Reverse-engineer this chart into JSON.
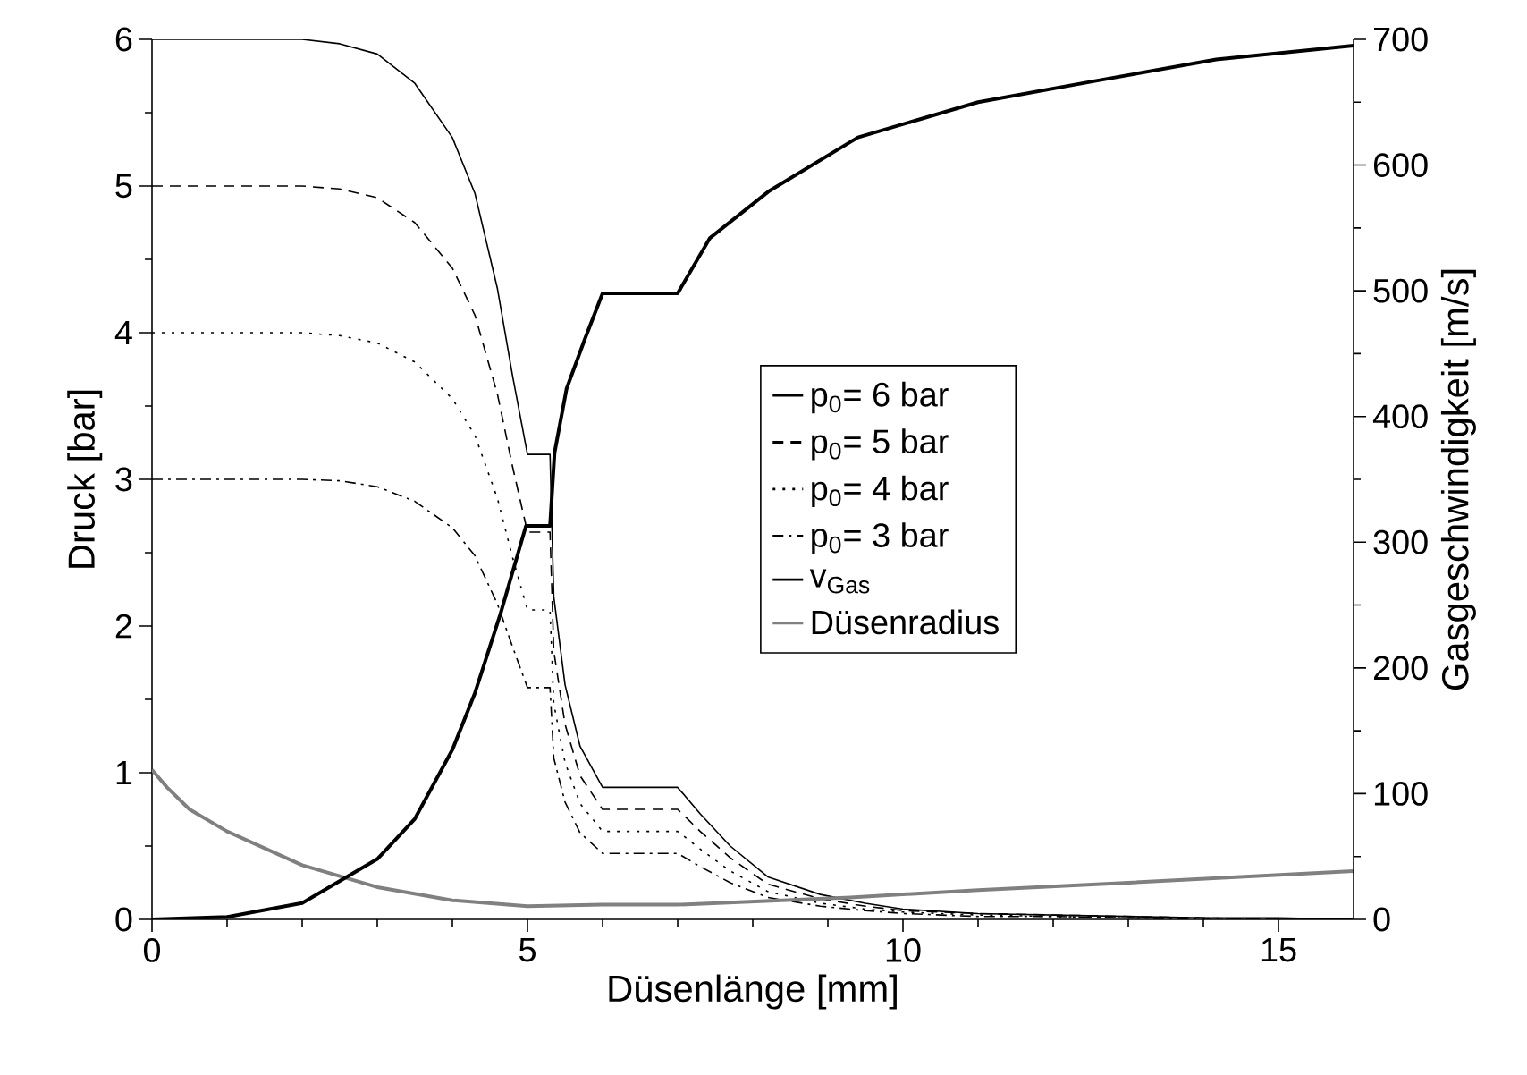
{
  "chart_data": {
    "type": "line",
    "xlabel": "Düsenlänge [mm]",
    "ylabel": "Druck [bar]",
    "y2label": "Gasgeschwindigkeit [m/s]",
    "xlim": [
      0,
      16
    ],
    "xticks": [
      0,
      5,
      10,
      15
    ],
    "ylim": [
      0,
      6
    ],
    "yticks": [
      0,
      1,
      2,
      3,
      4,
      5,
      6
    ],
    "y2lim": [
      0,
      700
    ],
    "y2ticks": [
      0,
      100,
      200,
      300,
      400,
      500,
      600,
      700
    ],
    "legend": "right",
    "grid": false,
    "marker": "none",
    "x": [
      0,
      1,
      2,
      2.5,
      3,
      3.5,
      4,
      4.3,
      4.6,
      4.8,
      5,
      5.3,
      5.35,
      5.5,
      5.7,
      6,
      7,
      7.3,
      7.7,
      8.2,
      8.9,
      9.5,
      10,
      11,
      12,
      13,
      14,
      15,
      16
    ],
    "series": [
      {
        "name": "p$_{0}$= 6 bar",
        "color": "#000000",
        "line_style": "solid",
        "values": [
          6,
          6,
          6,
          5.97,
          5.9,
          5.7,
          5.33,
          4.95,
          4.3,
          3.71,
          3.17,
          3.17,
          2.2,
          1.6,
          1.18,
          0.9,
          0.9,
          0.72,
          0.5,
          0.29,
          0.17,
          0.11,
          0.07,
          0.04,
          0.03,
          0.02,
          0.01,
          0.01,
          0
        ]
      },
      {
        "name": "p$_{0}$= 5 bar",
        "color": "#000000",
        "line_style": "dashed",
        "values": [
          5,
          5,
          5,
          4.98,
          4.92,
          4.75,
          4.44,
          4.12,
          3.58,
          3.09,
          2.64,
          2.64,
          1.83,
          1.33,
          0.98,
          0.75,
          0.75,
          0.6,
          0.42,
          0.24,
          0.14,
          0.09,
          0.06,
          0.04,
          0.03,
          0.02,
          0.01,
          0,
          0
        ]
      },
      {
        "name": "p$_{0}$= 4 bar",
        "color": "#000000",
        "line_style": "dotted",
        "values": [
          4,
          4,
          4,
          3.98,
          3.93,
          3.8,
          3.55,
          3.3,
          2.87,
          2.47,
          2.11,
          2.11,
          1.47,
          1.07,
          0.79,
          0.6,
          0.6,
          0.48,
          0.33,
          0.19,
          0.11,
          0.07,
          0.05,
          0.03,
          0.02,
          0.01,
          0.01,
          0,
          0
        ]
      },
      {
        "name": "p$_{0}$= 3 bar",
        "color": "#000000",
        "line_style": "dashdot",
        "values": [
          3,
          3,
          3,
          2.99,
          2.95,
          2.85,
          2.67,
          2.48,
          2.15,
          1.86,
          1.58,
          1.58,
          1.1,
          0.8,
          0.59,
          0.45,
          0.45,
          0.36,
          0.25,
          0.15,
          0.09,
          0.06,
          0.04,
          0.02,
          0.02,
          0.01,
          0,
          0,
          0
        ]
      },
      {
        "name": "v$_{Gas}$",
        "color": "#000000",
        "line_style": "solid",
        "axis": "y2",
        "x": [
          0,
          1,
          2,
          3,
          3.5,
          4,
          4.3,
          4.64,
          4.98,
          5.3,
          5.36,
          5.52,
          5.76,
          6,
          7,
          7.43,
          8.21,
          9.4,
          11,
          12.57,
          14.17,
          16
        ],
        "values": [
          0,
          2,
          13,
          48,
          80,
          135,
          180,
          243,
          313,
          313,
          371,
          422,
          461,
          498,
          498,
          542,
          579,
          622,
          650,
          667,
          684,
          695
        ]
      },
      {
        "name": "Düsenradius",
        "color": "#808080",
        "line_style": "solid",
        "x": [
          0,
          0.2,
          0.5,
          1,
          2,
          3,
          4,
          5,
          6,
          7,
          9.3,
          11,
          13,
          16
        ],
        "values": [
          1.02,
          0.9,
          0.75,
          0.6,
          0.37,
          0.22,
          0.13,
          0.09,
          0.1,
          0.1,
          0.15,
          0.2,
          0.25,
          0.33
        ]
      }
    ]
  }
}
